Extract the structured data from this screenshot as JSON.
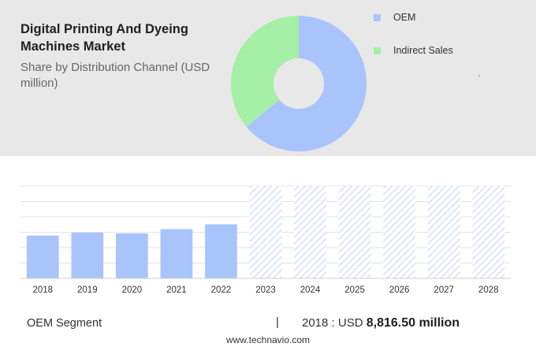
{
  "header": {
    "title": "Digital Printing And Dyeing Machines Market",
    "subtitle": "Share by Distribution Channel (USD million)"
  },
  "legend": [
    {
      "label": "OEM",
      "color": "#a9c4fb"
    },
    {
      "label": "Indirect Sales",
      "color": "#a6efa6"
    }
  ],
  "footer": {
    "segment_label": "OEM Segment",
    "separator": "|",
    "year_prefix": "2018 : USD ",
    "value_text": "8,816.50 million",
    "source": "www.technavio.com"
  },
  "chart_data": [
    {
      "type": "pie",
      "title": "Share by Distribution Channel (USD million)",
      "slices": [
        {
          "label": "OEM",
          "value": 64,
          "color": "#a9c4fb"
        },
        {
          "label": "Indirect Sales",
          "value": 36,
          "color": "#a6efa6"
        }
      ]
    },
    {
      "type": "bar",
      "categories": [
        "2018",
        "2019",
        "2020",
        "2021",
        "2022",
        "2023",
        "2024",
        "2025",
        "2026",
        "2027",
        "2028"
      ],
      "values": [
        8816.5,
        9440,
        9270,
        10140,
        11140,
        null,
        null,
        null,
        null,
        null,
        null
      ],
      "forecast_categories": [
        "2023",
        "2024",
        "2025",
        "2026",
        "2027",
        "2028"
      ],
      "ylim": [
        0,
        19000
      ],
      "bar_color": "#a9c4fb",
      "forecast_color": "#c9d8fb",
      "grid": true
    }
  ]
}
